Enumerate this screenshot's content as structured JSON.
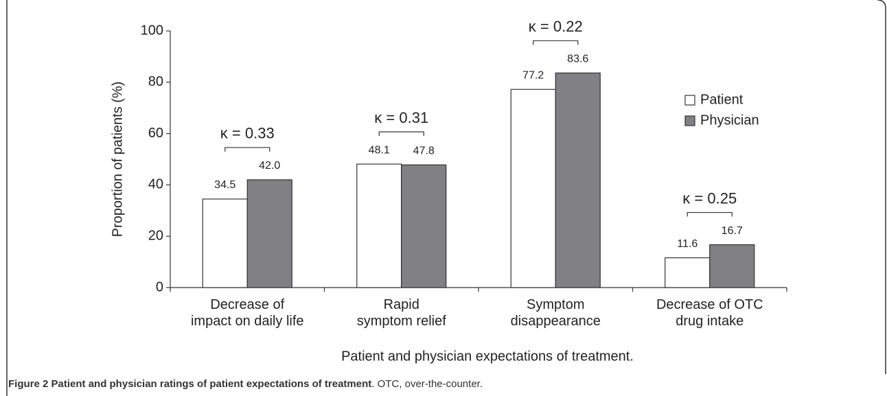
{
  "chart_data": {
    "type": "bar",
    "categories": [
      "Decrease of\nimpact on daily life",
      "Rapid\nsymptom relief",
      "Symptom\ndisappearance",
      "Decrease of OTC\ndrug intake"
    ],
    "series": [
      {
        "name": "Patient",
        "color": "#ffffff",
        "values": [
          34.5,
          48.1,
          77.2,
          11.6
        ],
        "value_labels": [
          "34.5",
          "48.1",
          "77.2",
          "11.6"
        ]
      },
      {
        "name": "Physician",
        "color": "#808085",
        "values": [
          42.0,
          47.8,
          83.6,
          16.7
        ],
        "value_labels": [
          "42.0",
          "47.8",
          "83.6",
          "16.7"
        ]
      }
    ],
    "annotations": [
      "κ = 0.33",
      "κ = 0.31",
      "κ = 0.22",
      "κ = 0.25"
    ],
    "ylabel": "Proportion of patients (%)",
    "xlabel": "Patient and physician expectations of treatment.",
    "ylim": [
      0,
      100
    ],
    "yticks": [
      0,
      20,
      40,
      60,
      80,
      100
    ],
    "legend": "upper right"
  },
  "caption": {
    "title": "Figure 2 Patient and physician ratings of patient expectations of treatment",
    "text": ". OTC, over-the-counter."
  }
}
